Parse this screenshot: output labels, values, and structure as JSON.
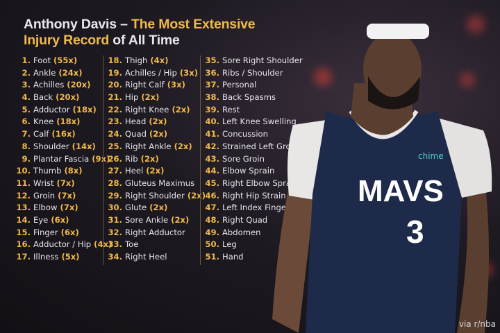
{
  "title": {
    "part1": "Anthony Davis – ",
    "part2": "The Most Extensive",
    "part3": "Injury Record",
    "part4": " of All Time"
  },
  "colors": {
    "accent": "#f1b94a",
    "text": "#e6e6ea",
    "jersey": "#1d2a4a"
  },
  "columns": [
    [
      {
        "num": "1.",
        "name": "Foot",
        "count": "(55x)"
      },
      {
        "num": "2.",
        "name": "Ankle",
        "count": "(24x)"
      },
      {
        "num": "3.",
        "name": "Achilles",
        "count": "(20x)"
      },
      {
        "num": "4.",
        "name": "Back",
        "count": "(20x)"
      },
      {
        "num": "5.",
        "name": "Adductor",
        "count": "(18x)"
      },
      {
        "num": "6.",
        "name": "Knee",
        "count": "(18x)"
      },
      {
        "num": "7.",
        "name": "Calf",
        "count": "(16x)"
      },
      {
        "num": "8.",
        "name": "Shoulder",
        "count": "(14x)"
      },
      {
        "num": "9.",
        "name": "Plantar Fascia",
        "count": "(9x)"
      },
      {
        "num": "10.",
        "name": "Thumb",
        "count": "(8x)"
      },
      {
        "num": "11.",
        "name": "Wrist",
        "count": "(7x)"
      },
      {
        "num": "12.",
        "name": "Groin",
        "count": "(7x)"
      },
      {
        "num": "13.",
        "name": "Elbow",
        "count": "(7x)"
      },
      {
        "num": "14.",
        "name": "Eye",
        "count": "(6x)"
      },
      {
        "num": "15.",
        "name": "Finger",
        "count": "(6x)"
      },
      {
        "num": "16.",
        "name": "Adductor / Hip",
        "count": "(4x)"
      },
      {
        "num": "17.",
        "name": "Illness",
        "count": "(5x)"
      }
    ],
    [
      {
        "num": "18.",
        "name": "Thigh",
        "count": "(4x)"
      },
      {
        "num": "19.",
        "name": "Achilles / Hip",
        "count": "(3x)"
      },
      {
        "num": "20.",
        "name": "Right Calf",
        "count": "(3x)"
      },
      {
        "num": "21.",
        "name": "Hip",
        "count": "(2x)"
      },
      {
        "num": "22.",
        "name": "Right Knee",
        "count": "(2x)"
      },
      {
        "num": "23.",
        "name": "Head",
        "count": "(2x)"
      },
      {
        "num": "24.",
        "name": "Quad",
        "count": "(2x)"
      },
      {
        "num": "25.",
        "name": "Right Ankle",
        "count": "(2x)"
      },
      {
        "num": "26.",
        "name": "Rib",
        "count": "(2x)"
      },
      {
        "num": "27.",
        "name": "Heel",
        "count": "(2x)"
      },
      {
        "num": "28.",
        "name": "Gluteus Maximus",
        "count": ""
      },
      {
        "num": "29.",
        "name": "Right Shoulder",
        "count": "(2x)"
      },
      {
        "num": "30.",
        "name": "Glute",
        "count": "(2x)"
      },
      {
        "num": "31.",
        "name": "Sore Ankle",
        "count": "(2x)"
      },
      {
        "num": "32.",
        "name": "Right Adductor",
        "count": ""
      },
      {
        "num": "33.",
        "name": "Toe",
        "count": ""
      },
      {
        "num": "34.",
        "name": "Right Heel",
        "count": ""
      }
    ],
    [
      {
        "num": "35.",
        "name": "Sore Right Shoulder",
        "count": ""
      },
      {
        "num": "36.",
        "name": "Ribs / Shoulder",
        "count": ""
      },
      {
        "num": "37.",
        "name": "Personal",
        "count": ""
      },
      {
        "num": "38.",
        "name": "Back Spasms",
        "count": ""
      },
      {
        "num": "39.",
        "name": "Rest",
        "count": ""
      },
      {
        "num": "40.",
        "name": "Left Knee Swelling",
        "count": ""
      },
      {
        "num": "41.",
        "name": "Concussion",
        "count": ""
      },
      {
        "num": "42.",
        "name": "Strained Left Groin",
        "count": ""
      },
      {
        "num": "43.",
        "name": "Sore Groin",
        "count": ""
      },
      {
        "num": "44.",
        "name": "Elbow Sprain",
        "count": ""
      },
      {
        "num": "45.",
        "name": "Right Elbow Sprain",
        "count": ""
      },
      {
        "num": "46.",
        "name": "Right Hip Strain",
        "count": ""
      },
      {
        "num": "47.",
        "name": "Left Index Finger",
        "count": ""
      },
      {
        "num": "48.",
        "name": "Right Quad",
        "count": ""
      },
      {
        "num": "49.",
        "name": "Abdomen",
        "count": ""
      },
      {
        "num": "50.",
        "name": "Leg",
        "count": ""
      },
      {
        "num": "51.",
        "name": "Hand",
        "count": ""
      }
    ]
  ],
  "player": {
    "jersey_text": "MAVS",
    "jersey_number": "3",
    "sponsor": "chime"
  },
  "credit": "via r/nba"
}
